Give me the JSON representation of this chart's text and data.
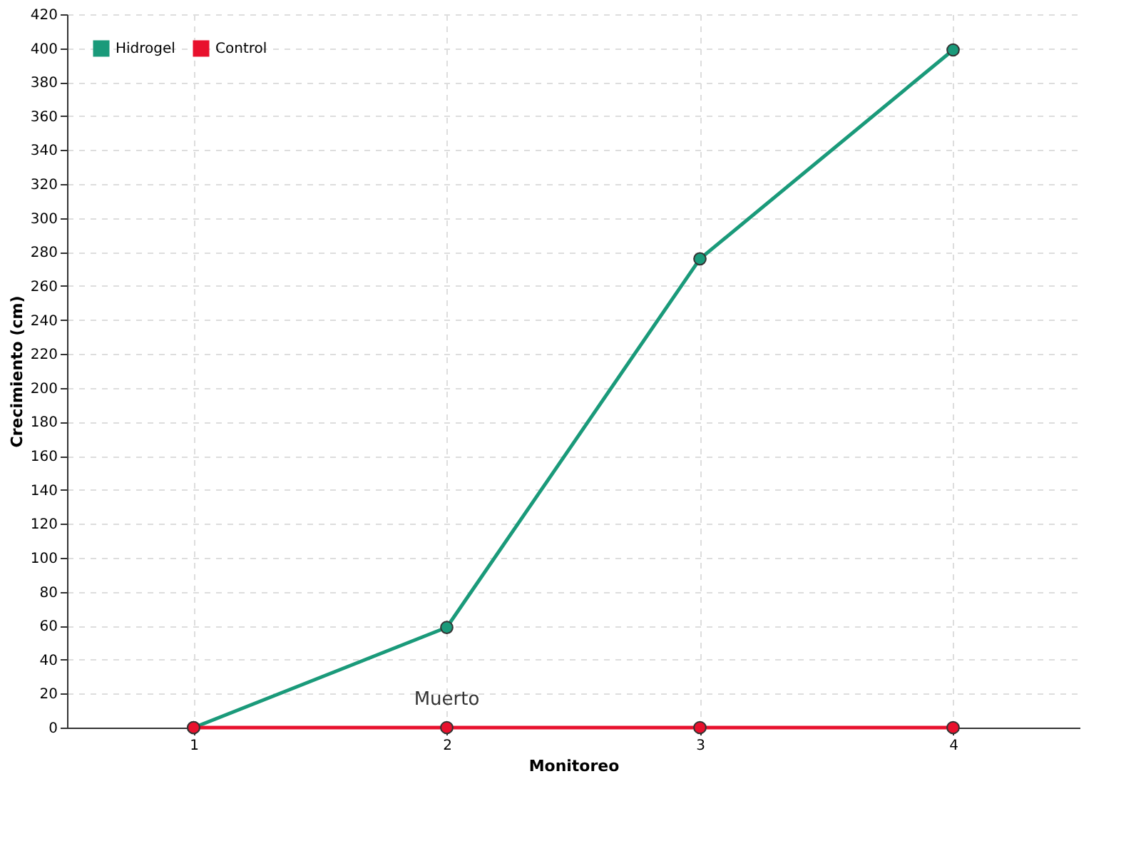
{
  "chart_data": {
    "type": "line",
    "xlabel": "Monitoreo",
    "ylabel": "Crecimiento (cm)",
    "categories": [
      "1",
      "2",
      "3",
      "4"
    ],
    "series": [
      {
        "name": "Hidrogel",
        "color": "#1a9a7a",
        "values": [
          0,
          59,
          276,
          399
        ]
      },
      {
        "name": "Control",
        "color": "#e8112d",
        "values": [
          0,
          0,
          0,
          0
        ]
      }
    ],
    "ylim": [
      0,
      420
    ],
    "yticks": [
      0,
      20,
      40,
      60,
      80,
      100,
      120,
      140,
      160,
      180,
      200,
      220,
      240,
      260,
      280,
      300,
      320,
      340,
      360,
      380,
      400,
      420
    ],
    "grid": true,
    "legend": "top left",
    "marker": "circle",
    "annotations": [
      {
        "text": "Muerto",
        "x": "2",
        "y": 0
      }
    ]
  }
}
